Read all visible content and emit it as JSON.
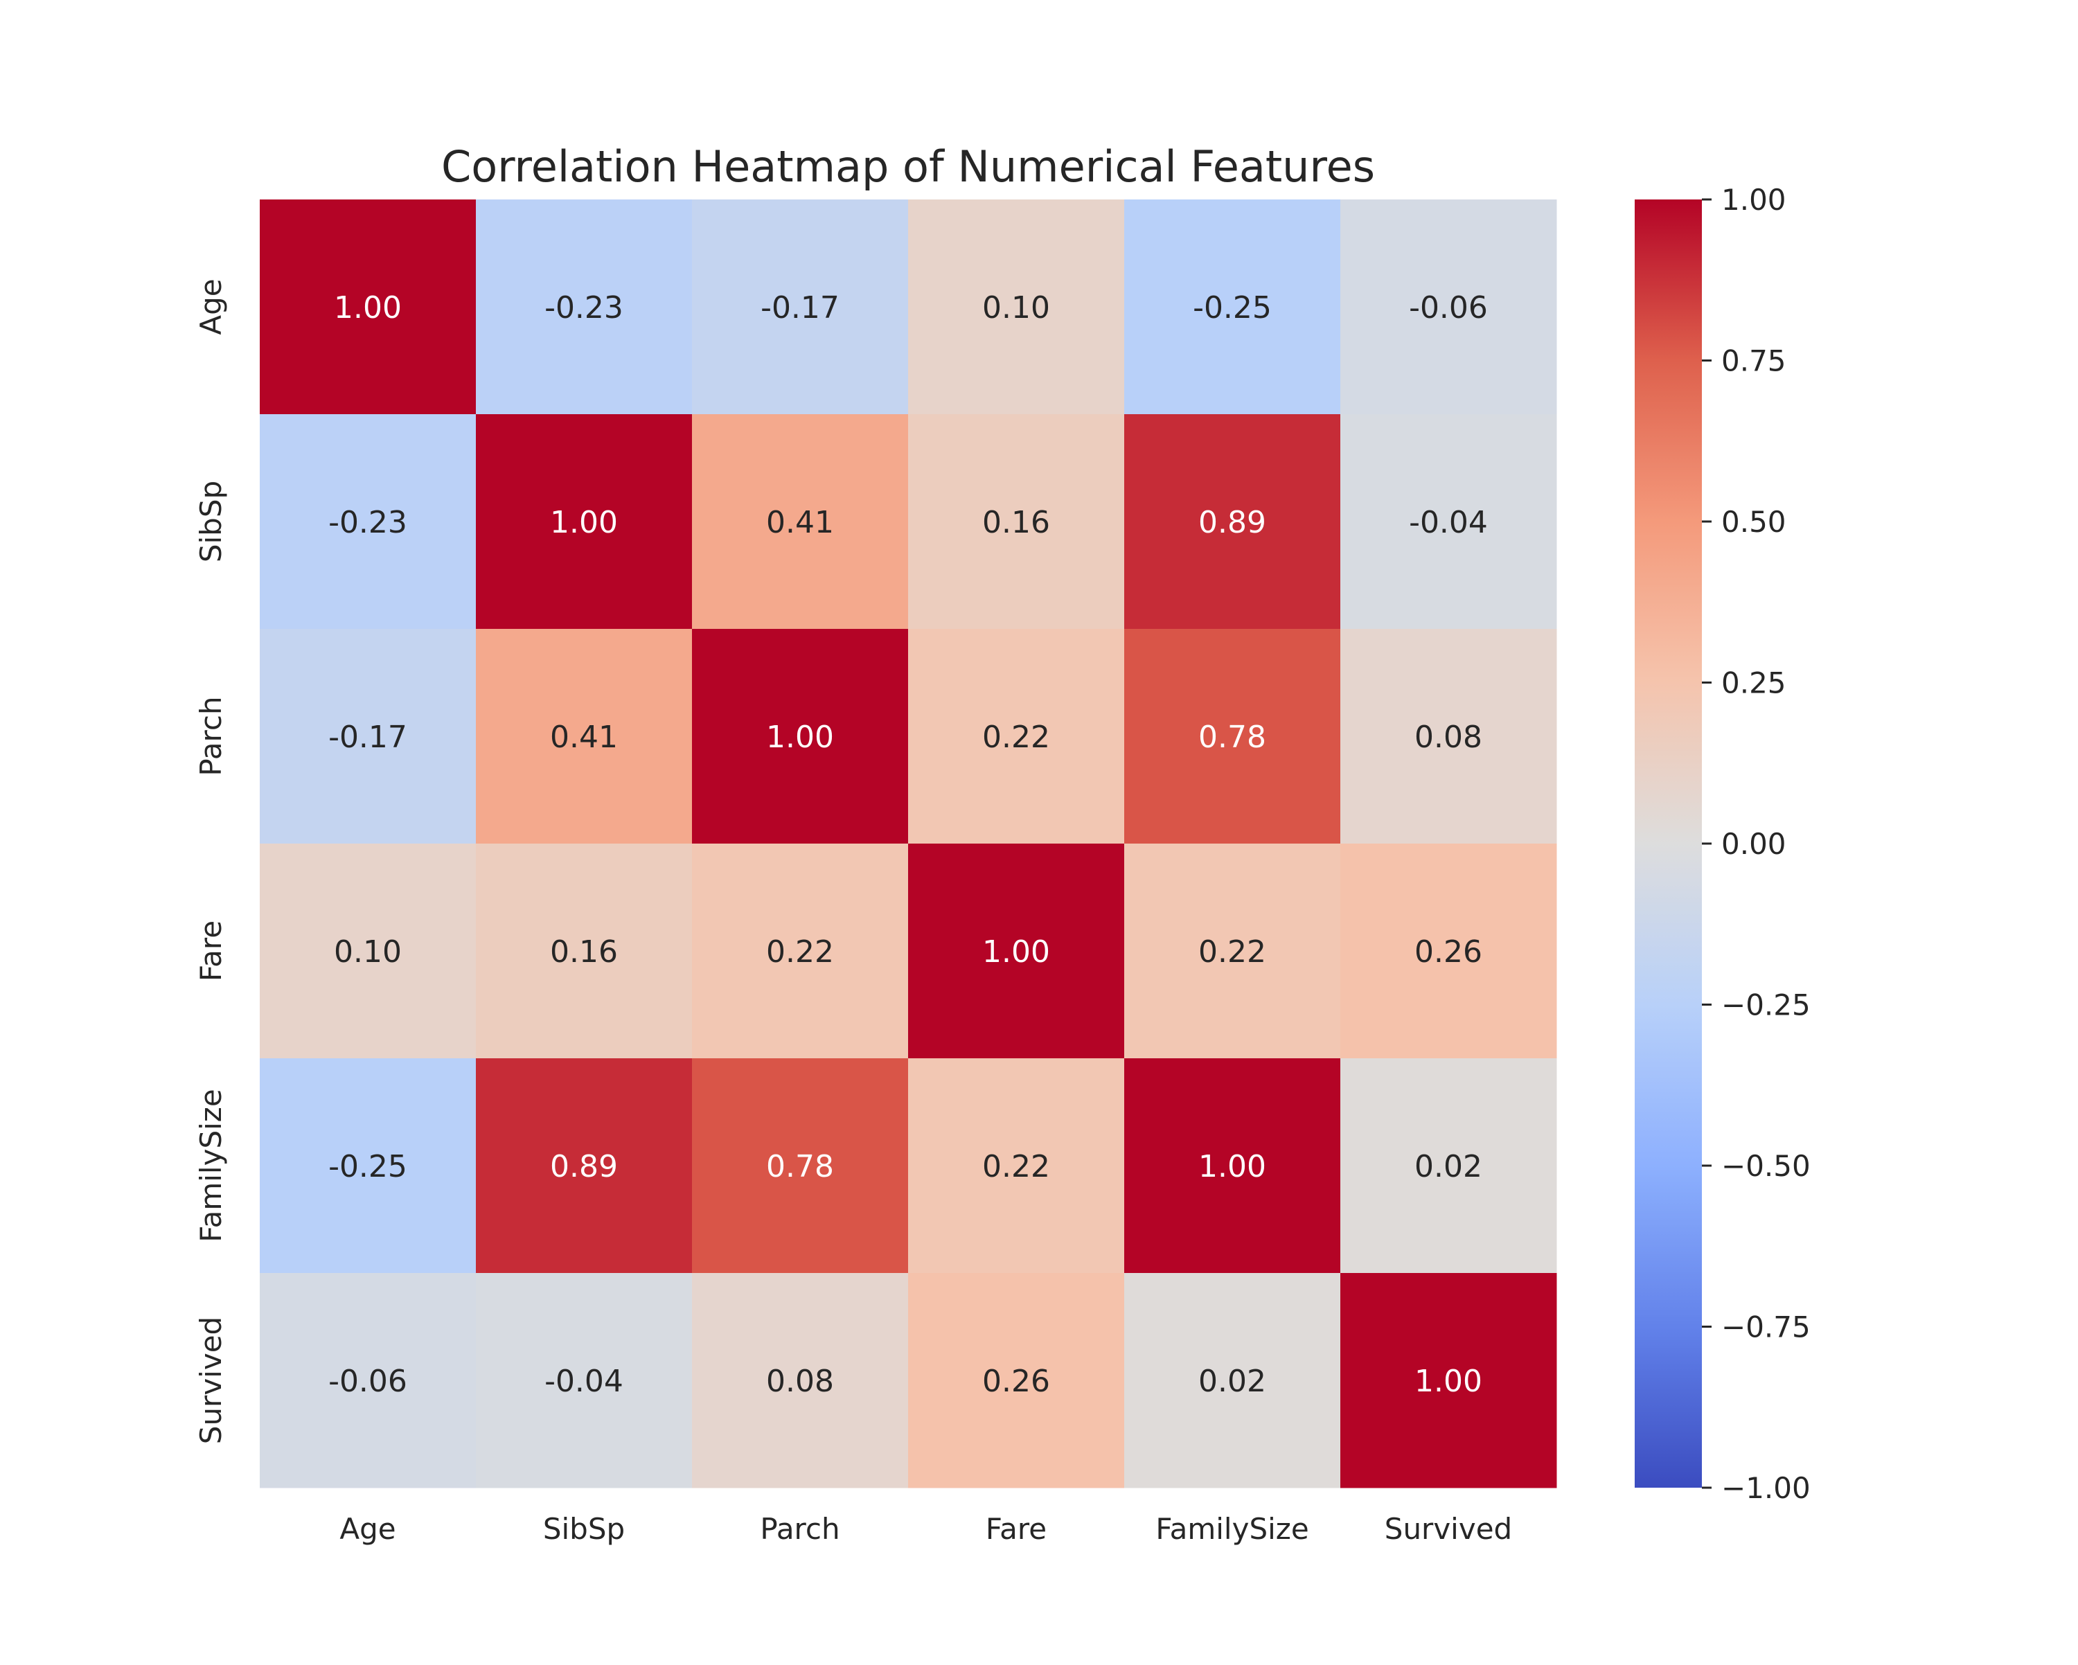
{
  "chart_data": {
    "type": "heatmap",
    "title": "Correlation Heatmap of Numerical Features",
    "xlabel": "",
    "ylabel": "",
    "x_categories": [
      "Age",
      "SibSp",
      "Parch",
      "Fare",
      "FamilySize",
      "Survived"
    ],
    "y_categories": [
      "Age",
      "SibSp",
      "Parch",
      "Fare",
      "FamilySize",
      "Survived"
    ],
    "values": [
      [
        1.0,
        -0.23,
        -0.17,
        0.1,
        -0.25,
        -0.06
      ],
      [
        -0.23,
        1.0,
        0.41,
        0.16,
        0.89,
        -0.04
      ],
      [
        -0.17,
        0.41,
        1.0,
        0.22,
        0.78,
        0.08
      ],
      [
        0.1,
        0.16,
        0.22,
        1.0,
        0.22,
        0.26
      ],
      [
        -0.25,
        0.89,
        0.78,
        0.22,
        1.0,
        0.02
      ],
      [
        -0.06,
        -0.04,
        0.08,
        0.26,
        0.02,
        1.0
      ]
    ],
    "annotation_format": "0.00",
    "colormap": "coolwarm",
    "vmin": -1.0,
    "vmax": 1.0,
    "colorbar": {
      "ticks": [
        1.0,
        0.75,
        0.5,
        0.25,
        0.0,
        -0.25,
        -0.5,
        -0.75,
        -1.0
      ],
      "tick_labels": [
        "1.00",
        "0.75",
        "0.50",
        "0.25",
        "0.00",
        "−0.25",
        "−0.50",
        "−0.75",
        "−1.00"
      ]
    },
    "grid": false,
    "legend": "colorbar-right"
  }
}
